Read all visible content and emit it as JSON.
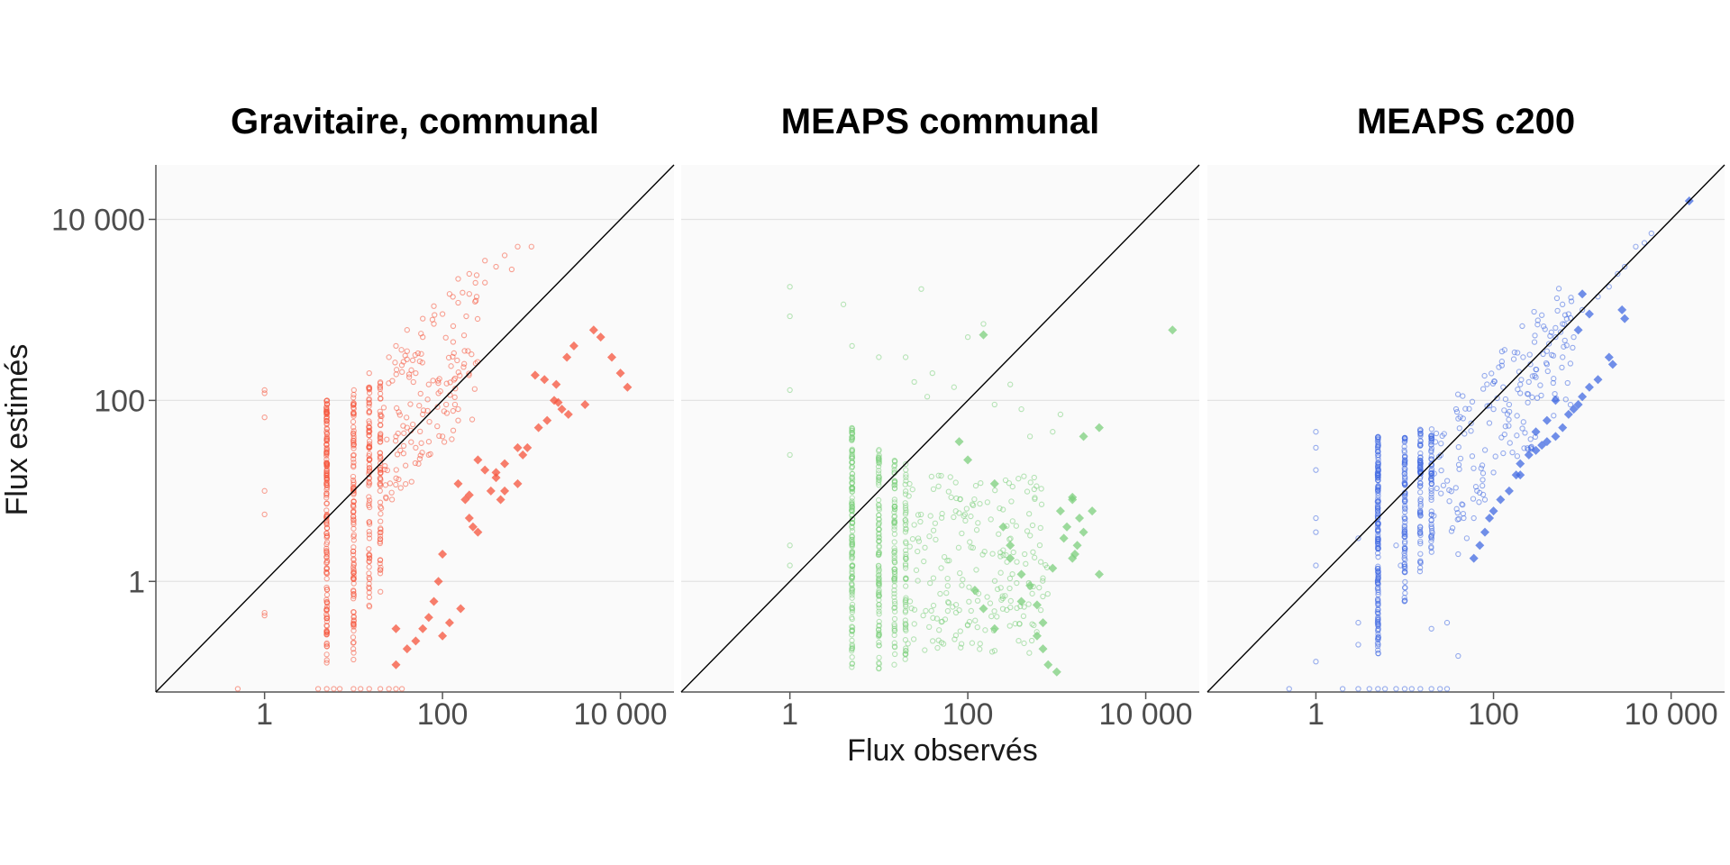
{
  "figure": {
    "xlabel": "Flux observés",
    "ylabel": "Flux estimés"
  },
  "chart_data": [
    {
      "type": "scatter",
      "title": "Gravitaire, communal",
      "color": "#f5533b",
      "x_scale": "log10",
      "y_scale": "log10",
      "xlim": [
        0.06,
        40000
      ],
      "ylim": [
        0.06,
        40000
      ],
      "x_ticks": [
        {
          "value": 1,
          "label": "1"
        },
        {
          "value": 100,
          "label": "100"
        },
        {
          "value": 10000,
          "label": "10 000"
        }
      ],
      "y_ticks": [
        {
          "value": 1,
          "label": "1"
        },
        {
          "value": 100,
          "label": "100"
        },
        {
          "value": 10000,
          "label": "10 000"
        }
      ],
      "reference_line": "y = x",
      "grid": "horizontal",
      "series": [
        {
          "marker": "open-circle",
          "clusters": [
            {
              "x": 5,
              "y_range": [
                0.12,
                100
              ],
              "count": 160
            },
            {
              "x": 10,
              "y_range": [
                0.12,
                130
              ],
              "count": 110
            },
            {
              "x": 15,
              "y_range": [
                0.5,
                140
              ],
              "count": 80
            },
            {
              "x": 20,
              "y_range": [
                0.7,
                160
              ],
              "count": 60
            }
          ],
          "points": [
            [
              1,
              130
            ],
            [
              1,
              120
            ],
            [
              1,
              65
            ],
            [
              1,
              10
            ],
            [
              1,
              5.5
            ],
            [
              1,
              0.45
            ],
            [
              1,
              0.42
            ],
            [
              15,
              200
            ],
            [
              25,
              300
            ],
            [
              40,
              350
            ],
            [
              60,
              500
            ],
            [
              80,
              700
            ],
            [
              100,
              900
            ],
            [
              150,
              1200
            ],
            [
              200,
              1500
            ],
            [
              300,
              2000
            ],
            [
              400,
              3000
            ],
            [
              500,
              4000
            ],
            [
              700,
              5000
            ],
            [
              1000,
              5000
            ],
            [
              600,
              2800
            ],
            [
              300,
              3500
            ],
            [
              200,
              2500
            ],
            [
              150,
              2200
            ],
            [
              120,
              1500
            ],
            [
              80,
              1100
            ],
            [
              60,
              800
            ],
            [
              40,
              600
            ],
            [
              30,
              400
            ],
            [
              50,
              200
            ],
            [
              70,
              150
            ],
            [
              90,
              120
            ],
            [
              110,
              90
            ],
            [
              150,
              80
            ],
            [
              60,
              70
            ],
            [
              40,
              50
            ],
            [
              30,
              40
            ],
            [
              50,
              30
            ],
            [
              70,
              25
            ],
            [
              100,
              40
            ],
            [
              150,
              60
            ]
          ],
          "random_cloud": {
            "x_range": [
              20,
              250
            ],
            "count": 130
          }
        },
        {
          "marker": "filled-diamond",
          "points": [
            [
              150,
              12
            ],
            [
              180,
              8
            ],
            [
              200,
              9
            ],
            [
              250,
              22
            ],
            [
              300,
              17
            ],
            [
              350,
              10
            ],
            [
              400,
              14
            ],
            [
              450,
              8
            ],
            [
              500,
              10
            ],
            [
              700,
              12
            ],
            [
              800,
              25
            ],
            [
              900,
              30
            ],
            [
              1200,
              50
            ],
            [
              1500,
              60
            ],
            [
              1100,
              190
            ],
            [
              1400,
              170
            ],
            [
              1800,
              100
            ],
            [
              2000,
              95
            ],
            [
              2200,
              80
            ],
            [
              1900,
              150
            ],
            [
              2600,
              70
            ],
            [
              4000,
              90
            ],
            [
              5000,
              600
            ],
            [
              6000,
              500
            ],
            [
              3000,
              400
            ],
            [
              2500,
              300
            ],
            [
              8000,
              300
            ],
            [
              10000,
              200
            ],
            [
              12000,
              140
            ],
            [
              700,
              30
            ],
            [
              500,
              20
            ],
            [
              400,
              16
            ],
            [
              200,
              5
            ],
            [
              220,
              4
            ],
            [
              250,
              3.5
            ],
            [
              100,
              2
            ],
            [
              90,
              1
            ],
            [
              80,
              0.6
            ],
            [
              70,
              0.4
            ],
            [
              60,
              0.3
            ],
            [
              50,
              0.22
            ],
            [
              40,
              0.18
            ],
            [
              30,
              0.12
            ],
            [
              100,
              0.25
            ],
            [
              120,
              0.35
            ],
            [
              160,
              0.5
            ],
            [
              30,
              0.3
            ]
          ]
        }
      ],
      "baseline_points": [
        0.5,
        4,
        5,
        6,
        7,
        10,
        12,
        15,
        20,
        25,
        30,
        35
      ]
    },
    {
      "type": "scatter",
      "title": "MEAPS communal",
      "color": "#7ccf7c",
      "x_scale": "log10",
      "y_scale": "log10",
      "xlim": [
        0.06,
        40000
      ],
      "ylim": [
        0.06,
        40000
      ],
      "x_ticks": [
        {
          "value": 1,
          "label": "1"
        },
        {
          "value": 100,
          "label": "100"
        },
        {
          "value": 10000,
          "label": "10 000"
        }
      ],
      "y_ticks": [],
      "reference_line": "y = x",
      "grid": "horizontal",
      "series": [
        {
          "marker": "open-circle",
          "clusters": [
            {
              "x": 5,
              "y_range": [
                0.1,
                50
              ],
              "count": 150
            },
            {
              "x": 10,
              "y_range": [
                0.1,
                30
              ],
              "count": 100
            },
            {
              "x": 15,
              "y_range": [
                0.1,
                25
              ],
              "count": 80
            },
            {
              "x": 20,
              "y_range": [
                0.1,
                20
              ],
              "count": 60
            }
          ],
          "points": [
            [
              1,
              1800
            ],
            [
              1,
              850
            ],
            [
              1,
              130
            ],
            [
              1,
              25
            ],
            [
              1,
              2.5
            ],
            [
              1,
              1.5
            ],
            [
              4,
              1150
            ],
            [
              5,
              400
            ],
            [
              10,
              300
            ],
            [
              20,
              300
            ],
            [
              30,
              1700
            ],
            [
              25,
              160
            ],
            [
              35,
              110
            ],
            [
              40,
              200
            ],
            [
              70,
              140
            ],
            [
              100,
              500
            ],
            [
              150,
              700
            ],
            [
              200,
              90
            ],
            [
              300,
              150
            ],
            [
              400,
              80
            ],
            [
              500,
              40
            ],
            [
              900,
              45
            ],
            [
              1100,
              70
            ]
          ],
          "random_cloud": {
            "x_range": [
              20,
              800
            ],
            "count": 220
          }
        },
        {
          "marker": "filled-diamond",
          "points": [
            [
              150,
              530
            ],
            [
              20000,
              600
            ],
            [
              80,
              35
            ],
            [
              100,
              22
            ],
            [
              200,
              12
            ],
            [
              250,
              4
            ],
            [
              300,
              2.5
            ],
            [
              400,
              1.2
            ],
            [
              500,
              0.9
            ],
            [
              600,
              0.55
            ],
            [
              700,
              0.35
            ],
            [
              900,
              1.4
            ],
            [
              1100,
              6
            ],
            [
              1300,
              4
            ],
            [
              1500,
              8
            ],
            [
              1800,
              5
            ],
            [
              1200,
              3
            ],
            [
              1500,
              1.8
            ],
            [
              1600,
              2
            ],
            [
              1700,
              2.5
            ],
            [
              2000,
              3.5
            ],
            [
              2500,
              6
            ],
            [
              3000,
              1.2
            ],
            [
              700,
              0.18
            ],
            [
              800,
              0.12
            ],
            [
              600,
              0.25
            ],
            [
              400,
              0.6
            ],
            [
              300,
              1.8
            ],
            [
              200,
              0.3
            ],
            [
              150,
              0.5
            ],
            [
              120,
              0.8
            ],
            [
              2000,
              40
            ],
            [
              3000,
              50
            ],
            [
              1500,
              8.5
            ],
            [
              1000,
              0.1
            ]
          ]
        }
      ],
      "baseline_points": []
    },
    {
      "type": "scatter",
      "title": "MEAPS c200",
      "color": "#4169e1",
      "x_scale": "log10",
      "y_scale": "log10",
      "xlim": [
        0.06,
        40000
      ],
      "ylim": [
        0.06,
        40000
      ],
      "x_ticks": [
        {
          "value": 1,
          "label": "1"
        },
        {
          "value": 100,
          "label": "100"
        },
        {
          "value": 10000,
          "label": "10 000"
        }
      ],
      "y_ticks": [],
      "reference_line": "y = x",
      "grid": "horizontal",
      "series": [
        {
          "marker": "open-circle",
          "clusters": [
            {
              "x": 5,
              "y_range": [
                0.12,
                40
              ],
              "count": 170
            },
            {
              "x": 10,
              "y_range": [
                0.5,
                40
              ],
              "count": 90
            },
            {
              "x": 15,
              "y_range": [
                1,
                50
              ],
              "count": 70
            },
            {
              "x": 20,
              "y_range": [
                2,
                50
              ],
              "count": 60
            }
          ],
          "points": [
            [
              1,
              45
            ],
            [
              1,
              30
            ],
            [
              1,
              17
            ],
            [
              1,
              5
            ],
            [
              1,
              3.5
            ],
            [
              1,
              0.13
            ],
            [
              1,
              1.5
            ],
            [
              3,
              3
            ],
            [
              3,
              0.35
            ],
            [
              3,
              0.2
            ],
            [
              8,
              2.5
            ],
            [
              9,
              1.5
            ],
            [
              20,
              0.3
            ],
            [
              30,
              0.35
            ],
            [
              40,
              0.15
            ],
            [
              50,
              3
            ],
            [
              40,
              2
            ],
            [
              60,
              5
            ],
            [
              80,
              8
            ],
            [
              100,
              80
            ],
            [
              150,
              90
            ],
            [
              200,
              120
            ],
            [
              250,
              160
            ],
            [
              300,
              220
            ],
            [
              400,
              350
            ],
            [
              500,
              500
            ],
            [
              600,
              700
            ],
            [
              700,
              900
            ],
            [
              1000,
              1000
            ],
            [
              1500,
              1400
            ],
            [
              2000,
              1800
            ],
            [
              2500,
              2500
            ],
            [
              3000,
              3000
            ],
            [
              4000,
              5000
            ],
            [
              5000,
              5500
            ],
            [
              6000,
              7000
            ],
            [
              800,
              500
            ],
            [
              600,
              300
            ],
            [
              400,
              250
            ],
            [
              300,
              180
            ],
            [
              200,
              150
            ]
          ],
          "random_cloud": {
            "x_range": [
              20,
              800
            ],
            "count": 170
          }
        },
        {
          "marker": "filled-diamond",
          "points": [
            [
              16000,
              16000
            ],
            [
              3000,
              800
            ],
            [
              2800,
              1000
            ],
            [
              2000,
              300
            ],
            [
              2200,
              250
            ],
            [
              1500,
              170
            ],
            [
              1200,
              140
            ],
            [
              1000,
              110
            ],
            [
              900,
              90
            ],
            [
              800,
              80
            ],
            [
              700,
              70
            ],
            [
              600,
              50
            ],
            [
              500,
              40
            ],
            [
              400,
              35
            ],
            [
              350,
              32
            ],
            [
              300,
              28
            ],
            [
              250,
              25
            ],
            [
              200,
              20
            ],
            [
              180,
              15
            ],
            [
              150,
              10
            ],
            [
              120,
              8
            ],
            [
              100,
              6
            ],
            [
              90,
              5
            ],
            [
              80,
              3.5
            ],
            [
              70,
              2.5
            ],
            [
              60,
              1.8
            ],
            [
              500,
              100
            ],
            [
              400,
              60
            ],
            [
              300,
              45
            ],
            [
              200,
              15
            ],
            [
              1000,
              1500
            ],
            [
              1200,
              900
            ],
            [
              900,
              600
            ]
          ]
        }
      ],
      "baseline_points": [
        0.5,
        2,
        3,
        4,
        5,
        6,
        8,
        10,
        12,
        15,
        20,
        25,
        30
      ]
    }
  ]
}
